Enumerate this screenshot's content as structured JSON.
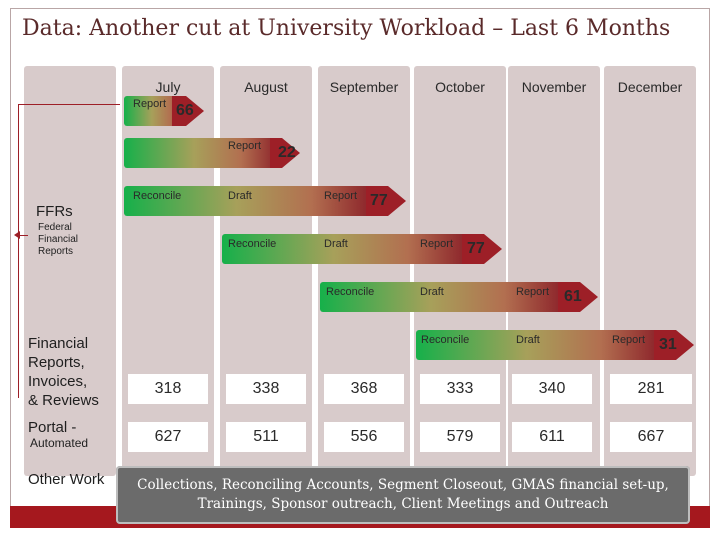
{
  "title": "Data: Another cut at University Workload – Last 6 Months",
  "months": [
    "July",
    "August",
    "September",
    "October",
    "November",
    "December"
  ],
  "ffrs": {
    "label": "FFRs",
    "sub": [
      "Federal",
      "Financial",
      "Reports"
    ]
  },
  "rows": [
    {
      "start_label": "Report",
      "count": "66"
    },
    {
      "start_label": "Report",
      "count": "22"
    },
    {
      "labels": [
        "Reconcile",
        "Draft",
        "Report"
      ],
      "count": "77"
    },
    {
      "labels": [
        "Reconcile",
        "Draft",
        "Report"
      ],
      "count": "77"
    },
    {
      "labels": [
        "Reconcile",
        "Draft",
        "Report"
      ],
      "count": "61"
    },
    {
      "labels": [
        "Reconcile",
        "Draft",
        "Report"
      ],
      "count": "31"
    }
  ],
  "financial_reports": {
    "label_lines": [
      "Financial",
      "Reports,",
      "Invoices,",
      "& Reviews"
    ],
    "values": [
      "318",
      "338",
      "368",
      "333",
      "340",
      "281"
    ]
  },
  "portal": {
    "label": "Portal -",
    "sub": "Automated",
    "values": [
      "627",
      "511",
      "556",
      "579",
      "611",
      "667"
    ]
  },
  "other_work": {
    "label": "Other Work",
    "text": "Collections, Reconciling Accounts, Segment Closeout, GMAS financial set-up, Trainings, Sponsor outreach, Client Meetings and Outreach"
  },
  "colors": {
    "accent": "#9d1f27",
    "column": "#d8cbcb",
    "other_box": "#6b6b6b"
  }
}
